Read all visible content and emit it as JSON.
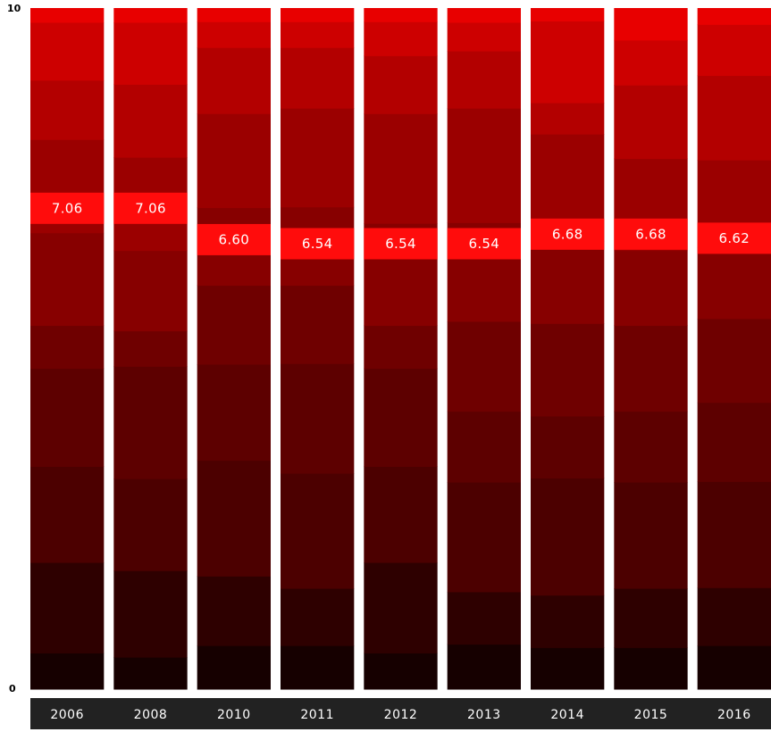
{
  "chart_data": {
    "type": "bar",
    "categories": [
      "2006",
      "2008",
      "2010",
      "2011",
      "2012",
      "2013",
      "2014",
      "2015",
      "2016"
    ],
    "values": [
      7.06,
      7.06,
      6.6,
      6.54,
      6.54,
      6.54,
      6.68,
      6.68,
      6.62
    ],
    "value_labels": [
      "7.06",
      "7.06",
      "6.60",
      "6.54",
      "6.54",
      "6.54",
      "6.68",
      "6.68",
      "6.62"
    ],
    "segment_bounds": [
      [
        0.53,
        1.86,
        3.27,
        4.71,
        5.34,
        6.7,
        8.07,
        8.94,
        9.79,
        10
      ],
      [
        0.47,
        1.74,
        3.09,
        4.74,
        5.26,
        6.44,
        7.81,
        8.88,
        9.79,
        10
      ],
      [
        0.64,
        1.66,
        3.36,
        4.77,
        5.93,
        7.07,
        8.45,
        9.42,
        9.8,
        10
      ],
      [
        0.64,
        1.48,
        3.17,
        4.78,
        5.93,
        7.08,
        8.53,
        9.42,
        9.8,
        10
      ],
      [
        0.53,
        1.86,
        3.27,
        4.71,
        5.34,
        6.84,
        8.45,
        9.3,
        9.8,
        10
      ],
      [
        0.66,
        1.43,
        3.04,
        4.08,
        5.4,
        6.85,
        8.53,
        9.37,
        9.79,
        10
      ],
      [
        0.61,
        1.38,
        3.1,
        4.01,
        5.37,
        6.58,
        8.15,
        8.61,
        9.81,
        10
      ],
      [
        0.61,
        1.48,
        3.04,
        4.08,
        5.34,
        6.44,
        7.79,
        8.87,
        9.53,
        10
      ],
      [
        0.64,
        1.49,
        3.05,
        4.21,
        5.44,
        6.49,
        7.77,
        9.01,
        9.76,
        10
      ]
    ],
    "ylim": [
      0,
      10
    ],
    "ytick_labels": [
      "0",
      "10"
    ],
    "colors": {
      "segments": [
        "#160000",
        "#2e0000",
        "#4c0000",
        "#5d0000",
        "#6f0000",
        "#870000",
        "#9b0000",
        "#b30000",
        "#cd0000",
        "#e80000"
      ],
      "value_box": "#ff0c0c",
      "category_bar": "#222222",
      "separator": "#ffffff"
    },
    "title": "",
    "xlabel": "",
    "ylabel": ""
  }
}
